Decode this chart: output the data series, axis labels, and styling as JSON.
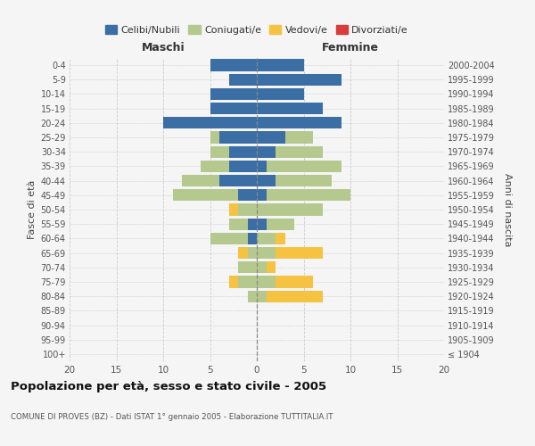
{
  "age_groups": [
    "100+",
    "95-99",
    "90-94",
    "85-89",
    "80-84",
    "75-79",
    "70-74",
    "65-69",
    "60-64",
    "55-59",
    "50-54",
    "45-49",
    "40-44",
    "35-39",
    "30-34",
    "25-29",
    "20-24",
    "15-19",
    "10-14",
    "5-9",
    "0-4"
  ],
  "birth_years": [
    "≤ 1904",
    "1905-1909",
    "1910-1914",
    "1915-1919",
    "1920-1924",
    "1925-1929",
    "1930-1934",
    "1935-1939",
    "1940-1944",
    "1945-1949",
    "1950-1954",
    "1955-1959",
    "1960-1964",
    "1965-1969",
    "1970-1974",
    "1975-1979",
    "1980-1984",
    "1985-1989",
    "1990-1994",
    "1995-1999",
    "2000-2004"
  ],
  "male": {
    "celibi": [
      0,
      0,
      0,
      0,
      0,
      0,
      0,
      0,
      1,
      1,
      0,
      2,
      4,
      3,
      3,
      4,
      10,
      5,
      5,
      3,
      5
    ],
    "coniugati": [
      0,
      0,
      0,
      0,
      1,
      2,
      2,
      1,
      4,
      2,
      2,
      7,
      4,
      3,
      2,
      1,
      0,
      0,
      0,
      0,
      0
    ],
    "vedovi": [
      0,
      0,
      0,
      0,
      0,
      1,
      0,
      1,
      0,
      0,
      1,
      0,
      0,
      0,
      0,
      0,
      0,
      0,
      0,
      0,
      0
    ],
    "divorziati": [
      0,
      0,
      0,
      0,
      0,
      0,
      0,
      0,
      0,
      0,
      0,
      0,
      0,
      0,
      0,
      0,
      0,
      0,
      0,
      0,
      0
    ]
  },
  "female": {
    "nubili": [
      0,
      0,
      0,
      0,
      0,
      0,
      0,
      0,
      0,
      1,
      0,
      1,
      2,
      1,
      2,
      3,
      9,
      7,
      5,
      9,
      5
    ],
    "coniugate": [
      0,
      0,
      0,
      0,
      1,
      2,
      1,
      2,
      2,
      3,
      7,
      9,
      6,
      8,
      5,
      3,
      0,
      0,
      0,
      0,
      0
    ],
    "vedove": [
      0,
      0,
      0,
      0,
      6,
      4,
      1,
      5,
      1,
      0,
      0,
      0,
      0,
      0,
      0,
      0,
      0,
      0,
      0,
      0,
      0
    ],
    "divorziate": [
      0,
      0,
      0,
      0,
      0,
      0,
      0,
      0,
      0,
      0,
      0,
      0,
      0,
      0,
      0,
      0,
      0,
      0,
      0,
      0,
      0
    ]
  },
  "colors": {
    "celibi_nubili": "#3a6ea5",
    "coniugati": "#b5c98e",
    "vedovi": "#f5c242",
    "divorziati": "#d93b3b"
  },
  "title": "Popolazione per età, sesso e stato civile - 2005",
  "subtitle": "COMUNE DI PROVES (BZ) - Dati ISTAT 1° gennaio 2005 - Elaborazione TUTTITALIA.IT",
  "xlabel_left": "Maschi",
  "xlabel_right": "Femmine",
  "ylabel_left": "Fasce di età",
  "ylabel_right": "Anni di nascita",
  "xlim": 20,
  "bg_color": "#f5f5f5",
  "plot_bg": "#f5f5f5",
  "grid_color": "#cccccc"
}
